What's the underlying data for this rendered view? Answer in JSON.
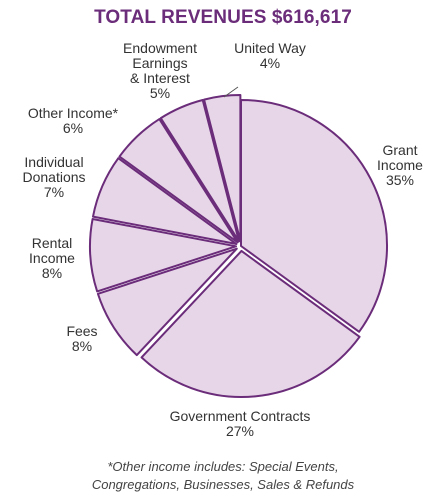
{
  "title": "TOTAL REVENUES $616,617",
  "footnote": {
    "line1": "*Other income includes: Special Events,",
    "line2": "Congregations, Businesses, Sales & Refunds"
  },
  "colors": {
    "slice_fill": "#e7d6e8",
    "slice_stroke": "#6b2c7a",
    "title": "#6b2c7a"
  },
  "chart_data": {
    "type": "pie",
    "title": "TOTAL REVENUES $616,617",
    "slices": [
      {
        "label_lines": [
          "Grant",
          "Income"
        ],
        "value_label": "35%",
        "value": 35,
        "exploded": false
      },
      {
        "label_lines": [
          "Government Contracts"
        ],
        "value_label": "27%",
        "value": 27,
        "exploded": true
      },
      {
        "label_lines": [
          "Fees"
        ],
        "value_label": "8%",
        "value": 8,
        "exploded": true
      },
      {
        "label_lines": [
          "Rental",
          "Income"
        ],
        "value_label": "8%",
        "value": 8,
        "exploded": true
      },
      {
        "label_lines": [
          "Individual",
          "Donations"
        ],
        "value_label": "7%",
        "value": 7,
        "exploded": true
      },
      {
        "label_lines": [
          "Other Income*"
        ],
        "value_label": "6%",
        "value": 6,
        "exploded": true
      },
      {
        "label_lines": [
          "Endowment",
          "Earnings",
          "& Interest"
        ],
        "value_label": "5%",
        "value": 5,
        "exploded": true
      },
      {
        "label_lines": [
          "United Way"
        ],
        "value_label": "4%",
        "value": 4,
        "exploded": true
      }
    ]
  }
}
